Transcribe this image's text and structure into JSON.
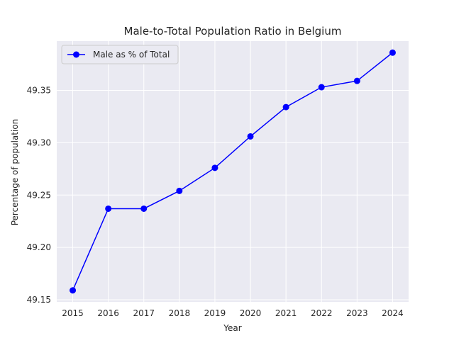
{
  "chart_data": {
    "type": "line",
    "title": "Male-to-Total Population Ratio in Belgium",
    "xlabel": "Year",
    "ylabel": "Percentage of population",
    "x": [
      2015,
      2016,
      2017,
      2018,
      2019,
      2020,
      2021,
      2022,
      2023,
      2024
    ],
    "series": [
      {
        "name": "Male as % of Total",
        "color": "#0000ff",
        "marker": "circle",
        "values": [
          49.159,
          49.237,
          49.237,
          49.254,
          49.276,
          49.306,
          49.334,
          49.353,
          49.359,
          49.386
        ]
      }
    ],
    "xlim": [
      2014.55,
      2024.45
    ],
    "ylim": [
      49.148,
      49.397
    ],
    "yticks": [
      49.15,
      49.2,
      49.25,
      49.3,
      49.35
    ],
    "ytick_labels": [
      "49.15",
      "49.20",
      "49.25",
      "49.30",
      "49.35"
    ],
    "xtick_labels": [
      "2015",
      "2016",
      "2017",
      "2018",
      "2019",
      "2020",
      "2021",
      "2022",
      "2023",
      "2024"
    ],
    "grid": true,
    "legend_position": "top-left",
    "style": {
      "plot_background": "#eaeaf2",
      "grid_color": "#ffffff",
      "page_background": "#ffffff"
    }
  }
}
